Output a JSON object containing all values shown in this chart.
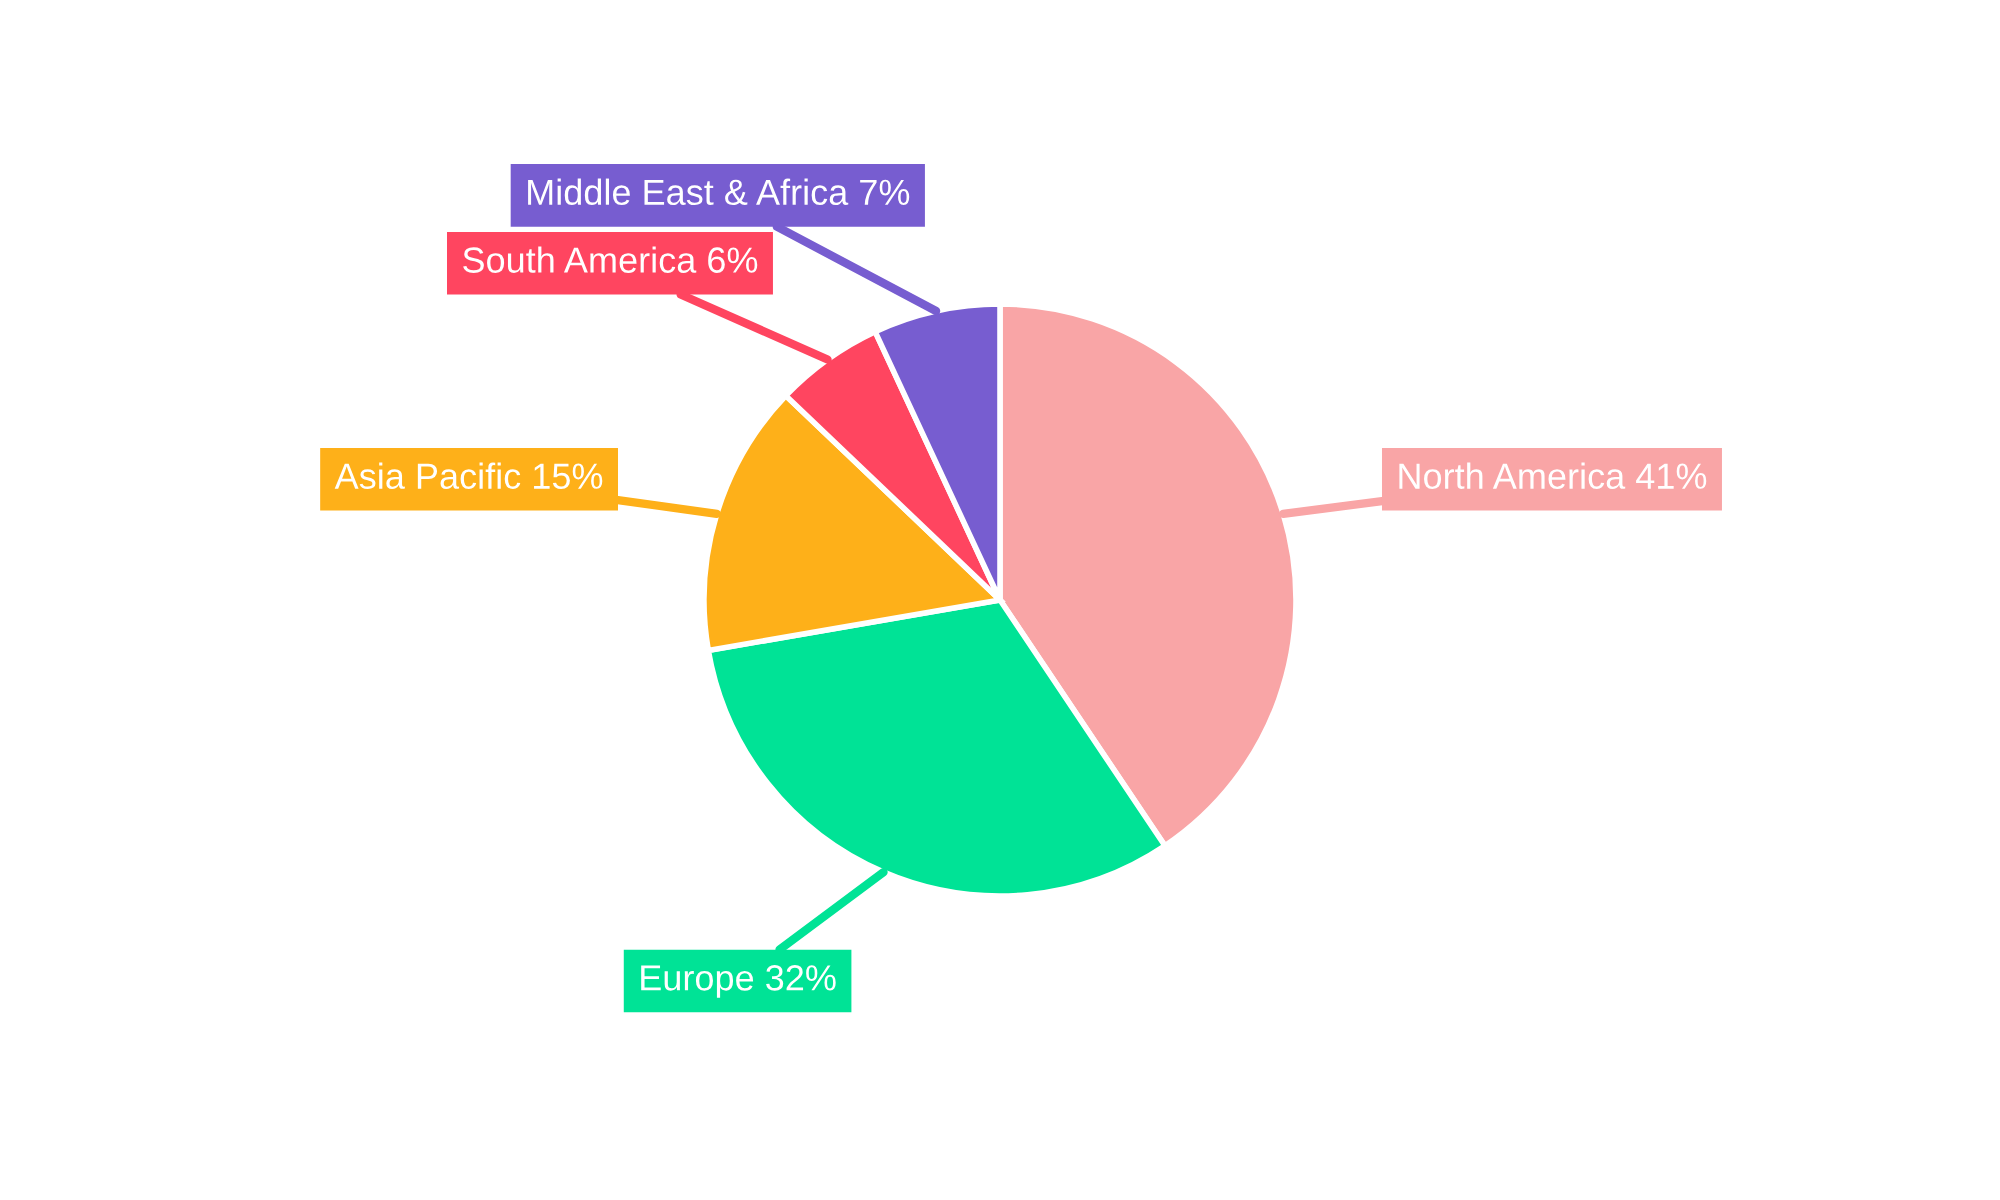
{
  "chart_data": {
    "type": "pie",
    "categories": [
      "North America",
      "Europe",
      "Asia Pacific",
      "South America",
      "Middle East & Africa"
    ],
    "values": [
      41,
      32,
      15,
      6,
      7
    ],
    "value_labels": [
      "41%",
      "32%",
      "15%",
      "6%",
      "7%"
    ],
    "colors": [
      "#f9a5a6",
      "#00e396",
      "#feb019",
      "#ff4560",
      "#775dd0"
    ],
    "legend": false
  }
}
